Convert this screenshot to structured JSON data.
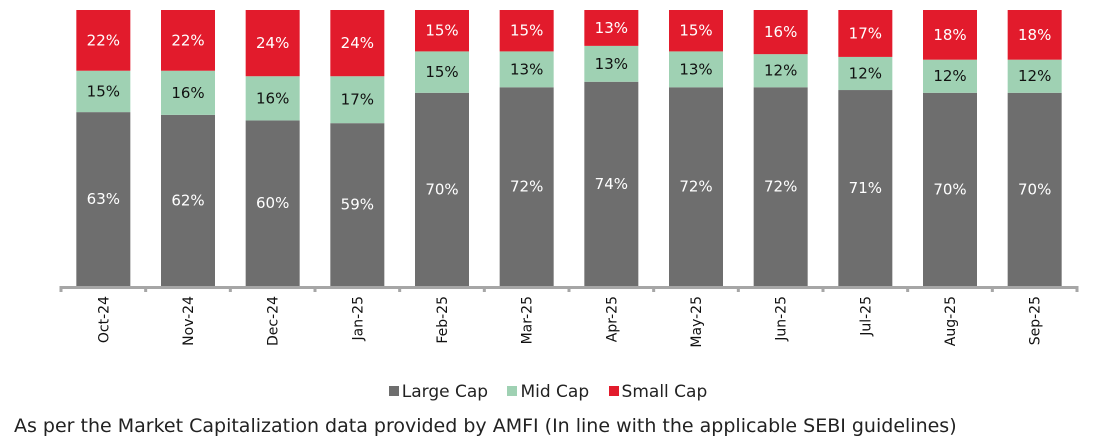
{
  "chart_data": {
    "type": "bar",
    "stacked": true,
    "title": "",
    "xlabel": "",
    "ylabel": "",
    "ylim": [
      0,
      100
    ],
    "grid": false,
    "legend_position": "bottom-center",
    "categories": [
      "Oct-24",
      "Nov-24",
      "Dec-24",
      "Jan-25",
      "Feb-25",
      "Mar-25",
      "Apr-25",
      "May-25",
      "Jun-25",
      "Jul-25",
      "Aug-25",
      "Sep-25"
    ],
    "series": [
      {
        "name": "Large Cap",
        "color": "#6E6E6E",
        "label_color": "#FFFFFF",
        "values": [
          63,
          62,
          60,
          59,
          70,
          72,
          74,
          72,
          72,
          71,
          70,
          70
        ]
      },
      {
        "name": "Mid Cap",
        "color": "#9FD1B3",
        "label_color": "#111111",
        "values": [
          15,
          16,
          16,
          17,
          15,
          13,
          13,
          13,
          12,
          12,
          12,
          12
        ]
      },
      {
        "name": "Small Cap",
        "color": "#E21B2C",
        "label_color": "#FFFFFF",
        "values": [
          22,
          22,
          24,
          24,
          15,
          15,
          13,
          15,
          16,
          17,
          18,
          18
        ]
      }
    ],
    "value_suffix": "%"
  },
  "legend": {
    "items": [
      {
        "label": "Large Cap",
        "color": "#6E6E6E"
      },
      {
        "label": "Mid Cap",
        "color": "#9FD1B3"
      },
      {
        "label": "Small Cap",
        "color": "#E21B2C"
      }
    ]
  },
  "footnote": "As per the Market Capitalization data provided by AMFI (In line with the applicable SEBI guidelines)",
  "axis_color": "#A6A6A6"
}
